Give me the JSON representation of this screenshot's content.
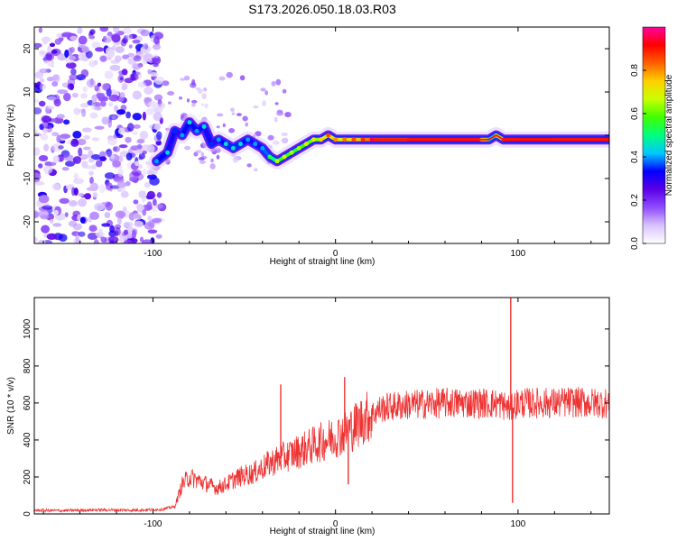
{
  "title": "S173.2026.050.18.03.R03",
  "chart_data": [
    {
      "type": "heatmap",
      "xlabel": "Height of straight line (km)",
      "ylabel": "Frequency (Hz)",
      "xlim": [
        -165,
        150
      ],
      "ylim": [
        -25,
        25
      ],
      "xticks": [
        -100,
        0,
        100
      ],
      "xtick_labels": [
        "-100",
        "0",
        "100"
      ],
      "yticks": [
        20,
        10,
        0,
        -10,
        -20
      ],
      "ytick_labels": [
        "20",
        "10",
        "0",
        "-10",
        "-20"
      ],
      "ridge_km": [
        -98,
        -92,
        -88,
        -84,
        -80,
        -76,
        -72,
        -68,
        -64,
        -60,
        -56,
        -52,
        -48,
        -44,
        -40,
        -36,
        -32,
        -28,
        -24,
        -20,
        -16,
        -12,
        -8,
        -4,
        0,
        5,
        10,
        15,
        20,
        40,
        60,
        80,
        84,
        88,
        92,
        100,
        120,
        150
      ],
      "ridge_hz": [
        -6,
        -4,
        1,
        0,
        3,
        1,
        2,
        -2,
        -1,
        -2,
        -3,
        -2,
        -1,
        -2,
        -3,
        -5,
        -6,
        -5,
        -4,
        -3,
        -2,
        -1,
        -1,
        0,
        -1,
        -1,
        -1,
        -1,
        -1,
        -1,
        -1,
        -1,
        -1,
        0,
        -1,
        -1,
        -1,
        -1
      ],
      "ridge_amp": [
        0.3,
        0.35,
        0.25,
        0.3,
        0.35,
        0.3,
        0.35,
        0.25,
        0.3,
        0.35,
        0.35,
        0.35,
        0.3,
        0.3,
        0.3,
        0.45,
        0.55,
        0.6,
        0.55,
        0.55,
        0.6,
        0.6,
        0.65,
        0.75,
        0.7,
        0.72,
        0.75,
        0.78,
        0.85,
        0.9,
        0.92,
        0.95,
        0.5,
        0.4,
        0.9,
        0.92,
        0.92,
        0.9
      ],
      "colorbar": {
        "label": "Normalized spectral amplitude",
        "ticks": [
          0.0,
          0.2,
          0.4,
          0.6,
          0.8
        ],
        "tick_labels": [
          "0.0",
          "0.2",
          "0.4",
          "0.6",
          "0.8"
        ],
        "range": [
          0.0,
          1.0
        ],
        "colors": [
          "#ffffff",
          "#d9c2ff",
          "#8f4cff",
          "#5a00e6",
          "#0000ff",
          "#00c8ff",
          "#00ff80",
          "#40ff00",
          "#c8ff00",
          "#ffd000",
          "#ff6000",
          "#ff0000",
          "#ff00a0"
        ]
      }
    },
    {
      "type": "line",
      "xlabel": "Height of straight line (km)",
      "ylabel": "SNR (10 * v/v)",
      "xlim": [
        -165,
        150
      ],
      "ylim": [
        0,
        1170
      ],
      "xticks": [
        -100,
        0,
        100
      ],
      "xtick_labels": [
        "-100",
        "0",
        "100"
      ],
      "yticks": [
        0,
        200,
        400,
        600,
        800,
        1000
      ],
      "ytick_labels": [
        "0",
        "200",
        "400",
        "600",
        "800",
        "1000"
      ],
      "series": [
        {
          "name": "SNR",
          "color": "#ee3333",
          "x": [
            -165,
            -150,
            -130,
            -110,
            -95,
            -88,
            -84,
            -80,
            -75,
            -70,
            -65,
            -60,
            -55,
            -50,
            -45,
            -40,
            -35,
            -30,
            -25,
            -20,
            -15,
            -10,
            -5,
            0,
            5,
            10,
            15,
            20,
            25,
            30,
            40,
            50,
            60,
            70,
            80,
            90,
            94,
            96,
            98,
            100,
            110,
            120,
            130,
            140,
            150
          ],
          "values": [
            20,
            18,
            22,
            20,
            25,
            40,
            160,
            200,
            180,
            160,
            140,
            160,
            190,
            210,
            220,
            250,
            280,
            300,
            320,
            340,
            360,
            380,
            400,
            420,
            440,
            470,
            510,
            540,
            570,
            580,
            590,
            595,
            600,
            600,
            600,
            595,
            580,
            560,
            590,
            600,
            600,
            600,
            605,
            600,
            600
          ],
          "spikes": [
            {
              "x": -30,
              "y": 700
            },
            {
              "x": 5,
              "y": 740
            },
            {
              "x": 7,
              "y": 160
            },
            {
              "x": 96,
              "y": 1170
            },
            {
              "x": 97,
              "y": 60
            }
          ]
        }
      ]
    }
  ]
}
